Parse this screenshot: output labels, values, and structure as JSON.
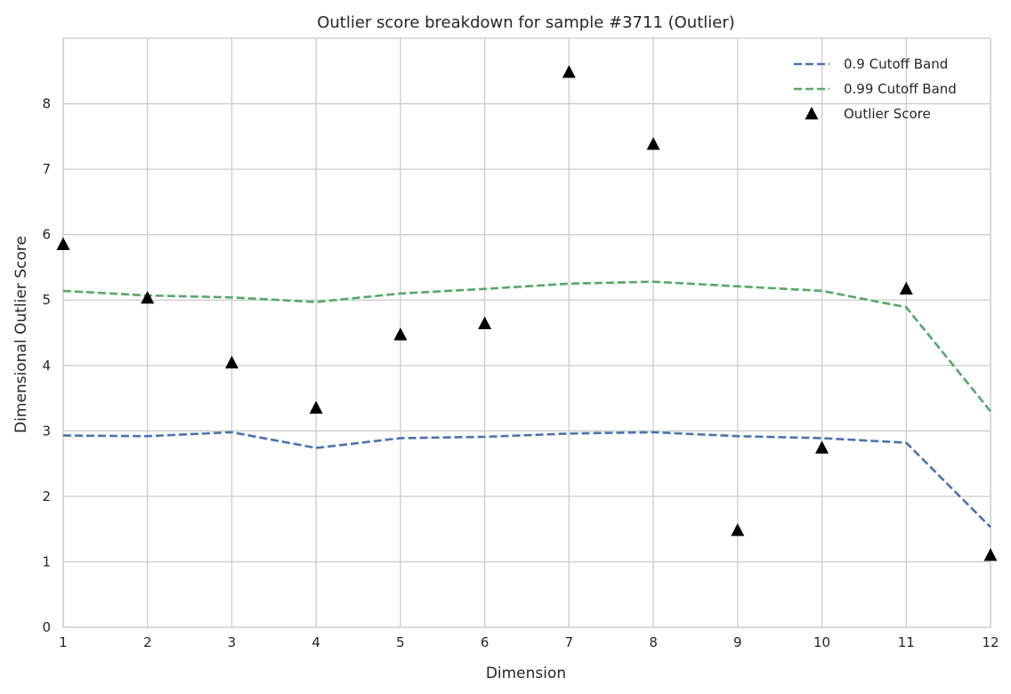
{
  "chart_data": {
    "type": "line",
    "title": "Outlier score breakdown for sample #3711 (Outlier)",
    "xlabel": "Dimension",
    "ylabel": "Dimensional Outlier Score",
    "x": [
      1,
      2,
      3,
      4,
      5,
      6,
      7,
      8,
      9,
      10,
      11,
      12
    ],
    "xlim": [
      1,
      12
    ],
    "ylim": [
      0,
      9
    ],
    "xticks": [
      "1",
      "2",
      "3",
      "4",
      "5",
      "6",
      "7",
      "8",
      "9",
      "10",
      "11",
      "12"
    ],
    "yticks": [
      "0",
      "1",
      "2",
      "3",
      "4",
      "5",
      "6",
      "7",
      "8"
    ],
    "grid": true,
    "legend_position": "top-right",
    "series": [
      {
        "name": "0.9 Cutoff Band",
        "type": "line",
        "style": "dashed",
        "color": "#4c72b0",
        "values": [
          2.93,
          2.92,
          2.98,
          2.74,
          2.89,
          2.91,
          2.96,
          2.98,
          2.92,
          2.89,
          2.82,
          1.53
        ]
      },
      {
        "name": "0.99 Cutoff Band",
        "type": "line",
        "style": "dashed",
        "color": "#55a868",
        "values": [
          5.14,
          5.07,
          5.04,
          4.97,
          5.1,
          5.17,
          5.25,
          5.28,
          5.21,
          5.14,
          4.89,
          3.3
        ]
      },
      {
        "name": "Outlier Score",
        "type": "scatter",
        "marker": "triangle",
        "color": "#000000",
        "values": [
          5.85,
          5.03,
          4.04,
          3.35,
          4.47,
          4.64,
          8.48,
          7.38,
          1.48,
          2.74,
          5.17,
          1.1
        ]
      }
    ]
  }
}
